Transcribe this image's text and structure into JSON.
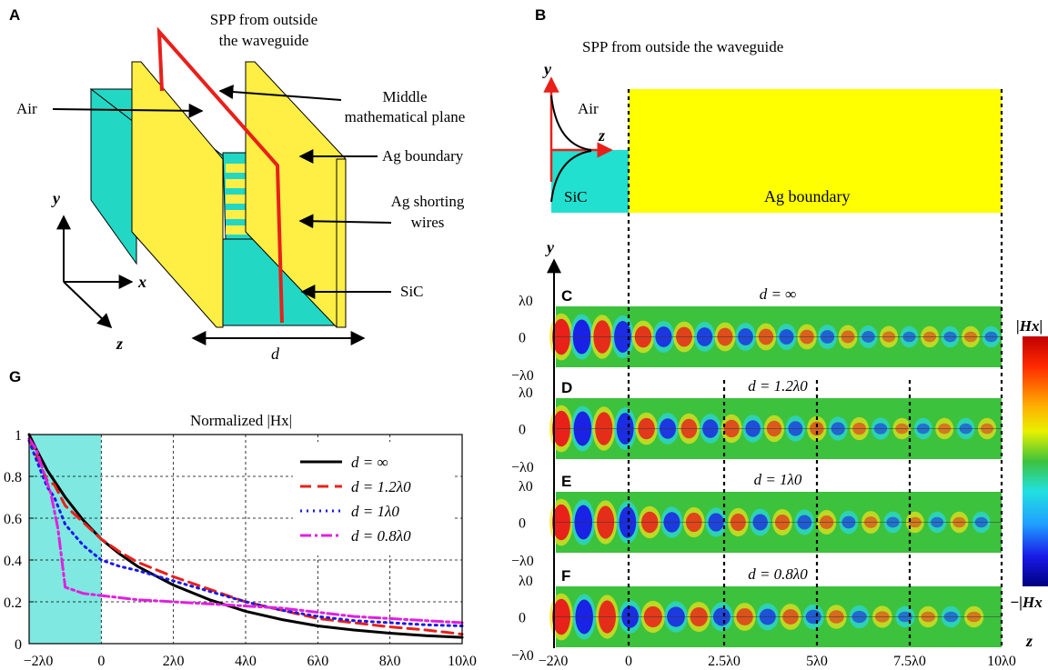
{
  "panel_letters": {
    "A": "A",
    "B": "B",
    "C": "C",
    "D": "D",
    "E": "E",
    "F": "F",
    "G": "G"
  },
  "panel_a": {
    "title_line1": "SPP from outside",
    "title_line2": "the waveguide",
    "air": "Air",
    "middle_line1": "Middle",
    "middle_line2": "mathematical plane",
    "ag_boundary": "Ag boundary",
    "shorting_line1": "Ag shorting",
    "shorting_line2": "wires",
    "sic": "SiC",
    "axis_x": "x",
    "axis_y": "y",
    "axis_z": "z",
    "width_label": "d"
  },
  "panel_b": {
    "title": "SPP from outside the waveguide",
    "air": "Air",
    "sic": "SiC",
    "ag_boundary": "Ag boundary",
    "axis_y": "y",
    "axis_z": "z"
  },
  "field_maps": {
    "y_axis": "y",
    "z_axis": "z",
    "y_ticks": [
      "λ0",
      "0",
      "−λ0"
    ],
    "z_ticks": [
      "−2λ0",
      "0",
      "2.5λ0",
      "5λ0",
      "7.5λ0",
      "10λ0"
    ],
    "colorbar_top": "|Hx|",
    "colorbar_bottom": "−|Hx",
    "maps": [
      {
        "letter": "C",
        "label": "d = ∞"
      },
      {
        "letter": "D",
        "label": "d = 1.2λ0"
      },
      {
        "letter": "E",
        "label": "d = 1λ0"
      },
      {
        "letter": "F",
        "label": "d = 0.8λ0"
      }
    ],
    "colors": {
      "background": "#3dc23d",
      "positive": "#e8201a",
      "negative": "#1a1ae8",
      "warm": "#f2e31a",
      "cool": "#26d9e6"
    }
  },
  "chart_data": {
    "type": "line",
    "title": "Normalized |Hx|",
    "xlim": [
      -2,
      10
    ],
    "ylim": [
      0,
      1
    ],
    "x_ticks": [
      "−2λ0",
      "0",
      "2λ0",
      "4λ0",
      "6λ0",
      "8λ0",
      "10λ0"
    ],
    "y_ticks": [
      "0",
      "0.2",
      "0.4",
      "0.6",
      "0.8",
      "1"
    ],
    "grid": true,
    "legend_position": "top-right",
    "shaded_region_x": [
      -2,
      0
    ],
    "series": [
      {
        "name": "d = ∞",
        "color": "#000000",
        "style": "solid",
        "x": [
          -2,
          -1.8,
          -1.5,
          -1,
          -0.5,
          0,
          0.5,
          1,
          2,
          3,
          4,
          5,
          6,
          7,
          8,
          9,
          10
        ],
        "y": [
          1,
          0.93,
          0.83,
          0.7,
          0.59,
          0.5,
          0.43,
          0.37,
          0.28,
          0.21,
          0.155,
          0.115,
          0.085,
          0.065,
          0.05,
          0.038,
          0.03
        ]
      },
      {
        "name": "d = 1.2λ0",
        "color": "#e8201a",
        "style": "dashed",
        "x": [
          -2,
          -1.8,
          -1.5,
          -1.3,
          -1,
          -0.5,
          0,
          0.5,
          1,
          2,
          3,
          4,
          5,
          6,
          7,
          8,
          9,
          10
        ],
        "y": [
          0.98,
          0.9,
          0.78,
          0.76,
          0.66,
          0.58,
          0.5,
          0.44,
          0.39,
          0.32,
          0.26,
          0.2,
          0.16,
          0.12,
          0.1,
          0.08,
          0.065,
          0.045
        ]
      },
      {
        "name": "d = 1λ0",
        "color": "#1a1ae8",
        "style": "dotted",
        "x": [
          -2,
          -1.8,
          -1.5,
          -1.3,
          -1,
          -0.5,
          0,
          0.5,
          1,
          2,
          3,
          4,
          5,
          6,
          7,
          8,
          9,
          10
        ],
        "y": [
          0.97,
          0.88,
          0.75,
          0.7,
          0.57,
          0.47,
          0.4,
          0.37,
          0.35,
          0.3,
          0.25,
          0.2,
          0.16,
          0.13,
          0.11,
          0.1,
          0.09,
          0.085
        ]
      },
      {
        "name": "d = 0.8λ0",
        "color": "#e020e0",
        "style": "dashdot",
        "x": [
          -2,
          -1.8,
          -1.6,
          -1.4,
          -1.2,
          -1,
          -0.5,
          0,
          1,
          2,
          3,
          4,
          5,
          6,
          7,
          8,
          9,
          10
        ],
        "y": [
          0.98,
          0.93,
          0.82,
          0.72,
          0.55,
          0.27,
          0.24,
          0.23,
          0.21,
          0.2,
          0.19,
          0.18,
          0.17,
          0.15,
          0.13,
          0.12,
          0.11,
          0.1
        ]
      }
    ]
  }
}
